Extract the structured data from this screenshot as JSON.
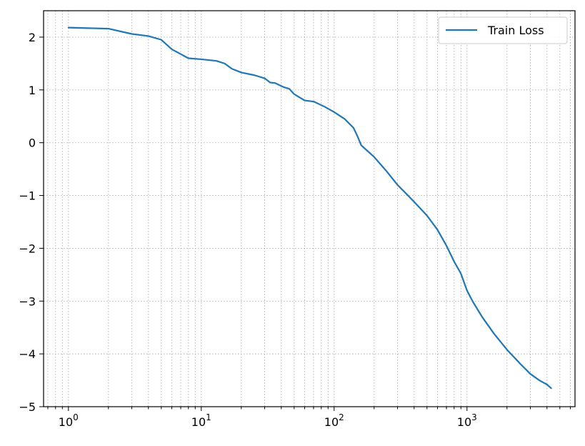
{
  "chart_data": {
    "type": "line",
    "title": "",
    "xlabel": "",
    "ylabel": "",
    "xscale": "log",
    "xlim": [
      0.65,
      6500
    ],
    "ylim": [
      -5,
      2.5
    ],
    "grid": "major and minor, dotted gray",
    "legend_position": "top-right",
    "x_tick_labels": [
      {
        "base": "10",
        "exp": "0"
      },
      {
        "base": "10",
        "exp": "1"
      },
      {
        "base": "10",
        "exp": "2"
      },
      {
        "base": "10",
        "exp": "3"
      }
    ],
    "y_tick_labels": [
      "2",
      "1",
      "0",
      "−1",
      "−2",
      "−3",
      "−4",
      "−5"
    ],
    "series": [
      {
        "name": "Train Loss",
        "color": "#1f77b4",
        "x": [
          1,
          2,
          3,
          4,
          5,
          6,
          8,
          10,
          13,
          15,
          17,
          20,
          25,
          30,
          33,
          36,
          38,
          42,
          46,
          50,
          60,
          70,
          85,
          100,
          120,
          140,
          150,
          160,
          200,
          250,
          300,
          350,
          400,
          500,
          600,
          700,
          800,
          900,
          1000,
          1100,
          1300,
          1600,
          2000,
          2500,
          3000,
          3500,
          4000,
          4300
        ],
        "y": [
          2.18,
          2.16,
          2.06,
          2.02,
          1.95,
          1.77,
          1.6,
          1.58,
          1.55,
          1.5,
          1.4,
          1.33,
          1.28,
          1.22,
          1.14,
          1.13,
          1.1,
          1.05,
          1.02,
          0.92,
          0.8,
          0.78,
          0.68,
          0.58,
          0.45,
          0.28,
          0.12,
          -0.05,
          -0.27,
          -0.55,
          -0.8,
          -0.97,
          -1.12,
          -1.38,
          -1.65,
          -1.95,
          -2.25,
          -2.48,
          -2.8,
          -3.0,
          -3.3,
          -3.62,
          -3.92,
          -4.18,
          -4.38,
          -4.5,
          -4.58,
          -4.65
        ]
      }
    ]
  }
}
